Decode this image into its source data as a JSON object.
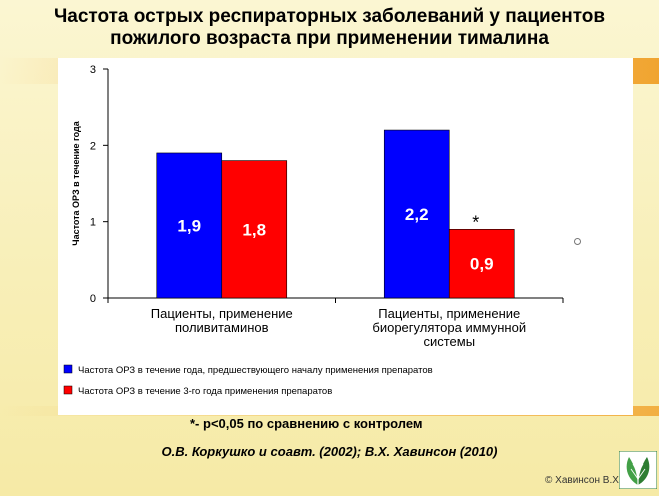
{
  "title": {
    "line1": "Частота  острых респираторных  заболеваний у пациентов",
    "line2": "пожилого возраста при применении тималина"
  },
  "chart_data": {
    "type": "bar",
    "ylabel": "Частота ОРЗ в течение года",
    "ylim": [
      0,
      3
    ],
    "yticks": [
      "0",
      "1",
      "2",
      "3"
    ],
    "categories": [
      [
        "Пациенты, применение",
        "поливитаминов"
      ],
      [
        "Пациенты, применение",
        "биорегулятора иммунной",
        "системы"
      ]
    ],
    "series": [
      {
        "name": "Частота ОРЗ в течение года, предшествующего началу применения препаратов",
        "color": "#0000ff",
        "values": [
          1.9,
          2.2
        ],
        "labels": [
          "1,9",
          "2,2"
        ]
      },
      {
        "name": "Частота ОРЗ в течение 3-го года применения препаратов",
        "color": "#ff0000",
        "values": [
          1.8,
          0.9
        ],
        "labels": [
          "1,8",
          "0,9"
        ]
      }
    ],
    "annotation": "*",
    "grid": false,
    "legend": "bottom"
  },
  "footnote": "*-  p<0,05 по сравнению с контролем",
  "citation": "О.В. Коркушко  и соавт. (2002); В.Х. Хавинсон (2010)",
  "copyright": "© Хавинсон В.Х.",
  "logo_icon": "leaf-logo-icon"
}
